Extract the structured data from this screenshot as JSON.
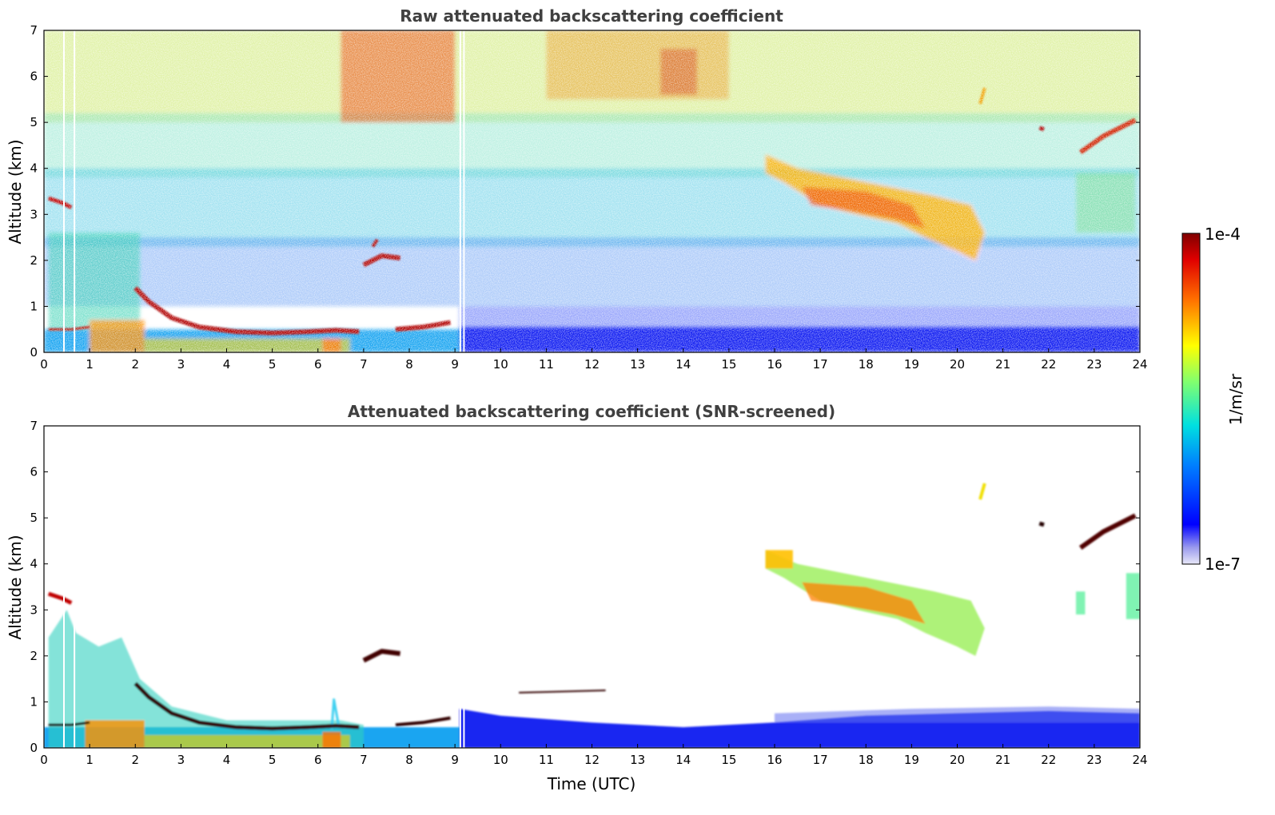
{
  "chart_data": [
    {
      "type": "heatmap",
      "title": "Raw attenuated backscattering coefficient",
      "xlabel": "",
      "ylabel": "Altitude (km)",
      "xlim": [
        0,
        24
      ],
      "ylim": [
        0,
        7
      ],
      "xticks": [
        "0",
        "1",
        "2",
        "3",
        "4",
        "5",
        "6",
        "7",
        "8",
        "9",
        "10",
        "11",
        "12",
        "13",
        "14",
        "15",
        "16",
        "17",
        "18",
        "19",
        "20",
        "21",
        "22",
        "23",
        "24"
      ],
      "yticks": [
        "0",
        "1",
        "2",
        "3",
        "4",
        "5",
        "6",
        "7"
      ],
      "features": [
        {
          "name": "boundary layer / aerosol",
          "x": [
            0,
            24
          ],
          "y": [
            0,
            0.6
          ]
        },
        {
          "name": "low cloud",
          "x": [
            0.1,
            9.0
          ],
          "y": [
            0.35,
            1.5
          ]
        },
        {
          "name": "early cloud",
          "x": [
            0,
            0.6
          ],
          "y": [
            3.1,
            3.4
          ]
        },
        {
          "name": "mid cloud",
          "x": [
            6.9,
            7.8
          ],
          "y": [
            1.7,
            2.4
          ]
        },
        {
          "name": "ice cloud",
          "x": [
            15.8,
            20.6
          ],
          "y": [
            2.0,
            4.4
          ]
        },
        {
          "name": "upper cloud",
          "x": [
            22.7,
            23.9
          ],
          "y": [
            4.3,
            5.1
          ]
        }
      ]
    },
    {
      "type": "heatmap",
      "title": "Attenuated backscattering coefficient (SNR-screened)",
      "xlabel": "Time (UTC)",
      "ylabel": "Altitude (km)",
      "xlim": [
        0,
        24
      ],
      "ylim": [
        0,
        7
      ],
      "xticks": [
        "0",
        "1",
        "2",
        "3",
        "4",
        "5",
        "6",
        "7",
        "8",
        "9",
        "10",
        "11",
        "12",
        "13",
        "14",
        "15",
        "16",
        "17",
        "18",
        "19",
        "20",
        "21",
        "22",
        "23",
        "24"
      ],
      "yticks": [
        "0",
        "1",
        "2",
        "3",
        "4",
        "5",
        "6",
        "7"
      ]
    }
  ],
  "colorbar": {
    "label": "1/m/sr",
    "max_label": "1e-4",
    "min_label": "1e-7",
    "scale": "log",
    "colormap": "jet"
  }
}
